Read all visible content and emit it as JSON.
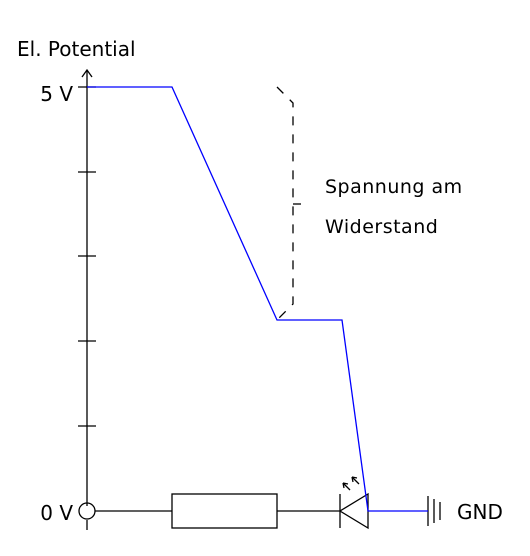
{
  "diagram": {
    "y_axis_label": "El. Potential",
    "tick_top": "5 V",
    "tick_bottom": "0 V",
    "annotation_line1": "Spannung am",
    "annotation_line2": "Widerstand",
    "ground_label": "GND",
    "potential_curve_color": "#0000ff",
    "line_color": "#000000"
  }
}
